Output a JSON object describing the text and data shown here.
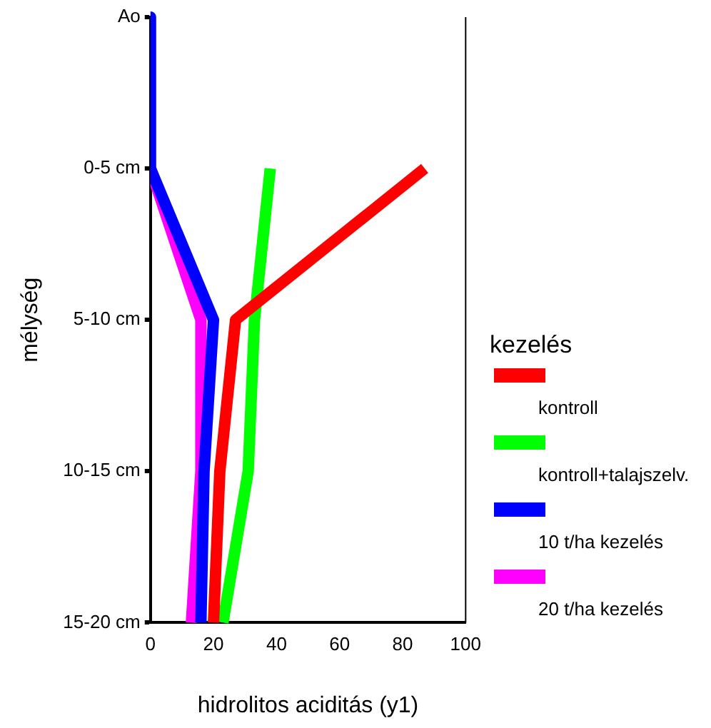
{
  "chart_data": {
    "type": "line",
    "xlabel": "hidrolitos aciditás (y1)",
    "ylabel": "mélység",
    "legend_title": "kezelés",
    "legend": "right",
    "grid": false,
    "marker": "none",
    "line_style": "solid",
    "orientation": "horizontal",
    "categories": [
      "Ao",
      "0-5 cm",
      "5-10 cm",
      "10-15 cm",
      "15-20 cm"
    ],
    "xlim": [
      0,
      100
    ],
    "xticks": [
      0,
      20,
      40,
      60,
      80,
      100
    ],
    "series": [
      {
        "name": "kontroll",
        "color": "#ff0000",
        "values": [
          null,
          87,
          27,
          22,
          20
        ]
      },
      {
        "name": "kontroll+talajszelv.",
        "color": "#00ff00",
        "values": [
          null,
          38,
          33,
          31,
          23
        ]
      },
      {
        "name": "10 t/ha kezelés",
        "color": "#0000ff",
        "values": [
          0,
          0,
          20,
          17,
          16
        ]
      },
      {
        "name": "20 t/ha kezelés",
        "color": "#ff00ff",
        "values": [
          null,
          0,
          16,
          16,
          13
        ]
      }
    ]
  }
}
